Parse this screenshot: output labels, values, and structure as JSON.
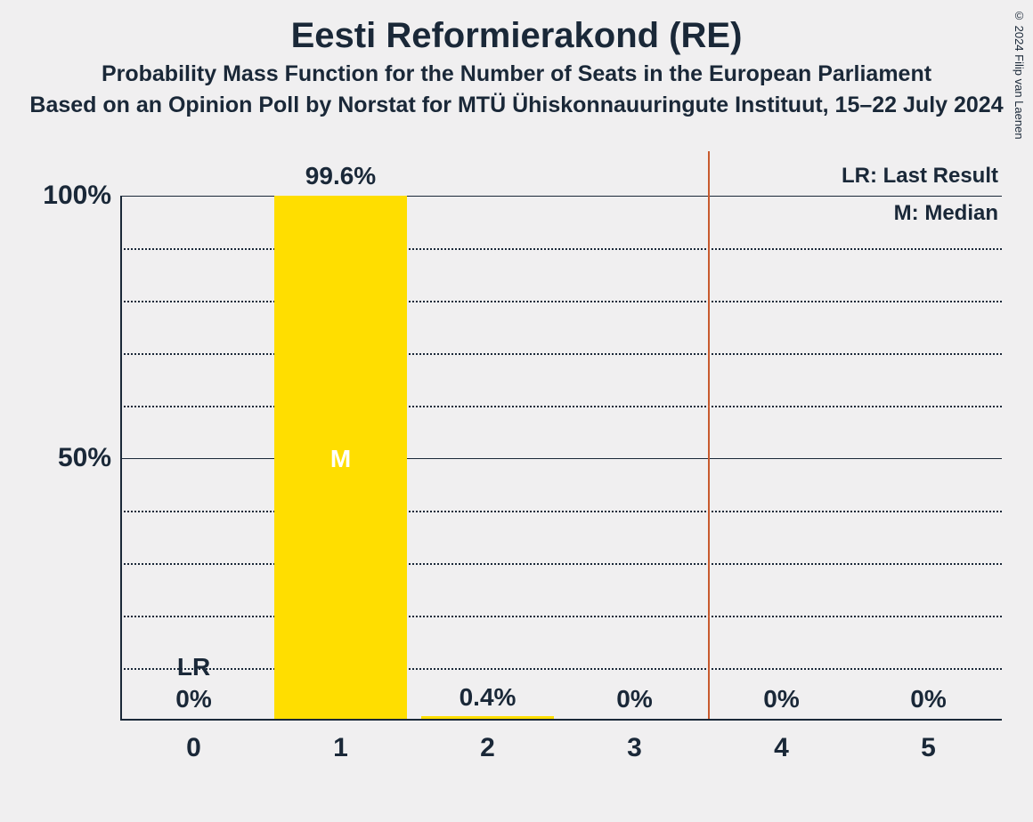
{
  "title": "Eesti Reformierakond (RE)",
  "subtitle1": "Probability Mass Function for the Number of Seats in the European Parliament",
  "subtitle2": "Based on an Opinion Poll by Norstat for MTÜ Ühiskonnauuringute Instituut, 15–22 July 2024",
  "copyright": "© 2024 Filip van Laenen",
  "chart": {
    "type": "bar",
    "categories": [
      "0",
      "1",
      "2",
      "3",
      "4",
      "5"
    ],
    "values": [
      0,
      99.6,
      0.4,
      0,
      0,
      0
    ],
    "value_labels": [
      "0%",
      "99.6%",
      "0.4%",
      "0%",
      "0%",
      "0%"
    ],
    "bar_color": "#ffde00",
    "ylim": [
      0,
      100
    ],
    "y_major_ticks": [
      50,
      100
    ],
    "y_tick_labels": [
      "50%",
      "100%"
    ],
    "y_minor_step": 10,
    "lr_position": 0,
    "lr_text": "LR",
    "median_position": 1,
    "median_text": "M",
    "ci_position": 3.5,
    "background_color": "#f0eff0",
    "axis_color": "#1a2838",
    "text_color": "#1a2838",
    "ci_color": "#c85a2e",
    "bar_width": 0.9,
    "title_fontsize": 40,
    "subtitle_fontsize": 25,
    "tick_fontsize": 30,
    "label_fontsize": 28
  },
  "legend": {
    "lr": "LR: Last Result",
    "m": "M: Median"
  }
}
